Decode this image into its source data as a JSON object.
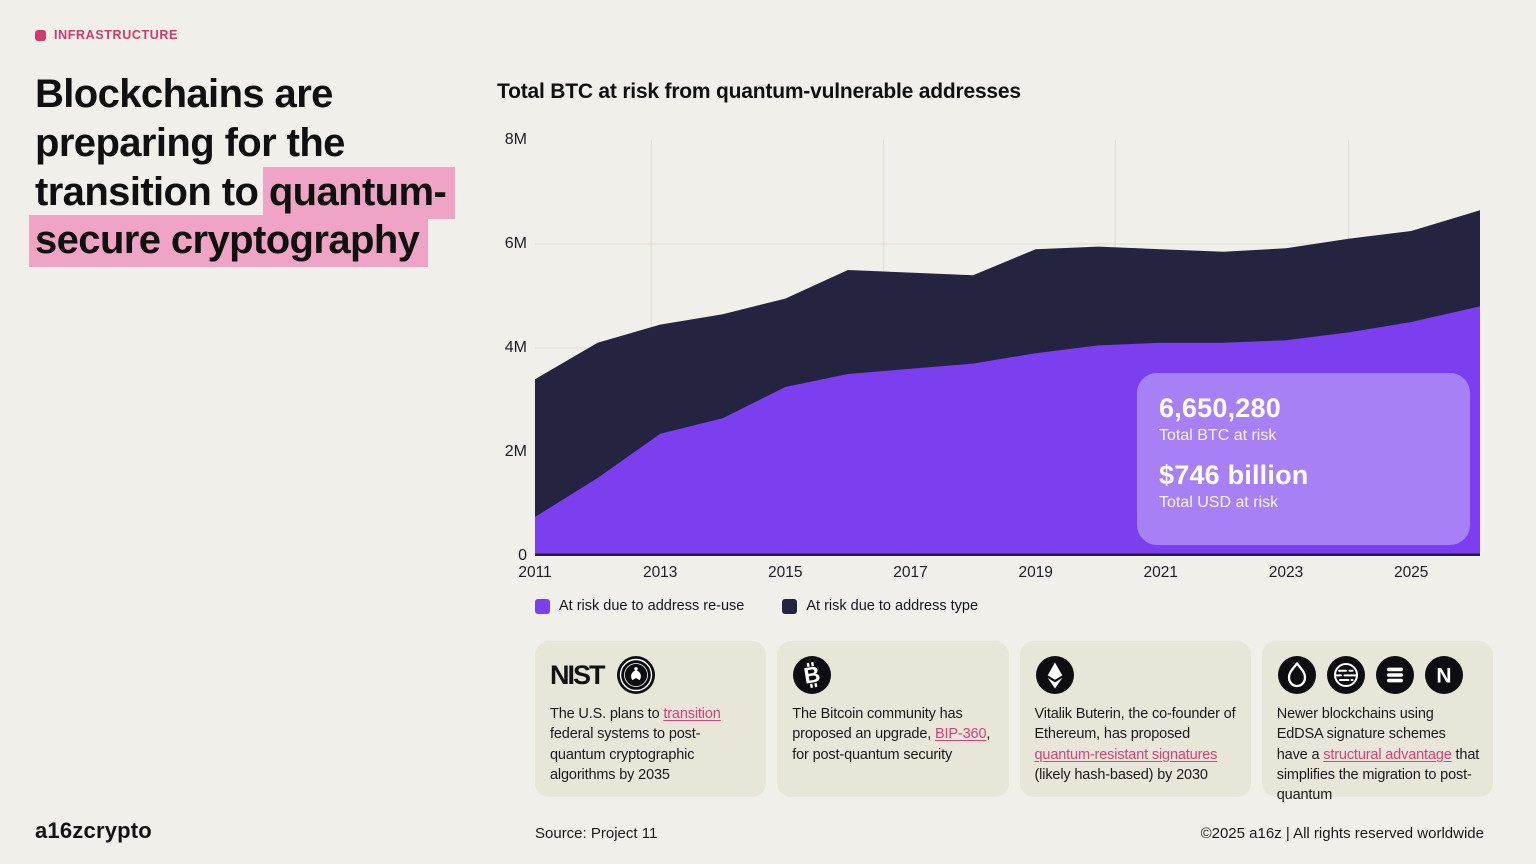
{
  "accent": {
    "tag_pink": "#cf3a6d",
    "highlight_pink": "#efa3c5",
    "link_pink": "#d8407c"
  },
  "kicker": {
    "label": "INFRASTRUCTURE"
  },
  "headline": {
    "text_before": "Blockchains are preparing for the transition to ",
    "highlight": "quantum-secure cryptography"
  },
  "chart_data": {
    "type": "area",
    "stacked": true,
    "title": "Total BTC at risk from quantum-vulnerable addresses",
    "unit": "BTC (millions)",
    "xlim": [
      2011,
      2026.1
    ],
    "ylim": [
      0,
      8
    ],
    "x": [
      2011,
      2012,
      2013,
      2014,
      2015,
      2016,
      2017,
      2018,
      2019,
      2020,
      2021,
      2022,
      2023,
      2024,
      2025,
      2026.1
    ],
    "series": [
      {
        "name": "At risk due to address re-use",
        "color": "#7c3ff0",
        "values": [
          0.75,
          1.5,
          2.35,
          2.65,
          3.25,
          3.5,
          3.6,
          3.7,
          3.9,
          4.05,
          4.1,
          4.1,
          4.15,
          4.3,
          4.5,
          4.8
        ]
      },
      {
        "name": "At risk due to address type",
        "color": "#242440",
        "values": [
          2.65,
          2.6,
          2.1,
          2.0,
          1.7,
          2.0,
          1.85,
          1.7,
          2.0,
          1.9,
          1.8,
          1.75,
          1.77,
          1.8,
          1.75,
          1.85
        ]
      }
    ],
    "yticks": [
      {
        "label": "8M",
        "value": 8
      },
      {
        "label": "6M",
        "value": 6
      },
      {
        "label": "4M",
        "value": 4
      },
      {
        "label": "2M",
        "value": 2
      },
      {
        "label": "0",
        "value": 0
      }
    ],
    "xticks": [
      2011,
      2013,
      2015,
      2017,
      2019,
      2021,
      2023,
      2025
    ],
    "grid": {
      "vertical_fractions": [
        0.123,
        0.369,
        0.614,
        0.861
      ],
      "horizontal_at": [
        2,
        4,
        6
      ]
    },
    "legend_position": "bottom-left",
    "annotations": {
      "btc_value": "6,650,280",
      "btc_label": "Total BTC at risk",
      "usd_value": "$746 billion",
      "usd_label": "Total USD at risk"
    }
  },
  "cards": [
    {
      "icons": [
        "nist-logo",
        "government-seal"
      ],
      "wordmark": "NIST",
      "text_before": "The U.S. plans to ",
      "link": "transition",
      "text_after": " federal systems to post-quantum cryptographic algorithms by 2035"
    },
    {
      "icons": [
        "bitcoin"
      ],
      "text_before": "The Bitcoin community has proposed an upgrade, ",
      "link": "BIP-360",
      "text_after": ", for post-quantum security"
    },
    {
      "icons": [
        "ethereum"
      ],
      "text_before": "Vitalik Buterin, the co-founder of Ethereum, has proposed ",
      "link": "quantum-resistant signatures",
      "text_after": " (likely hash-based) by 2030"
    },
    {
      "icons": [
        "sui",
        "globe-coin",
        "solana",
        "near"
      ],
      "text_before": "Newer blockchains using EdDSA signature schemes have a ",
      "link": "structural advantage",
      "text_after": " that simplifies the migration  to post-quantum"
    }
  ],
  "footer": {
    "logo": "a16zcrypto",
    "source": "Source: Project 11",
    "copyright": "©2025 a16z | All rights reserved worldwide"
  }
}
